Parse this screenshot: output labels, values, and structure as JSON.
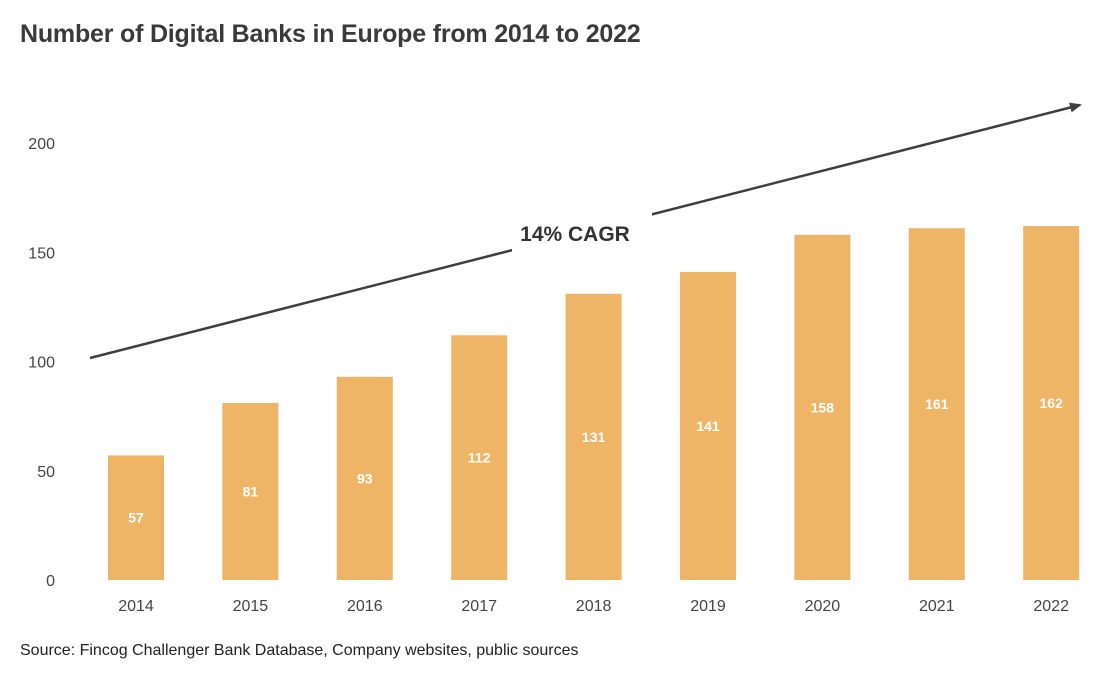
{
  "chart_data": {
    "type": "bar",
    "title": "Number of Digital Banks in Europe from 2014 to 2022",
    "categories": [
      "2014",
      "2015",
      "2016",
      "2017",
      "2018",
      "2019",
      "2020",
      "2021",
      "2022"
    ],
    "values": [
      57,
      81,
      93,
      112,
      131,
      141,
      158,
      161,
      162
    ],
    "data_labels": [
      "57",
      "81",
      "93",
      "112",
      "131",
      "141",
      "158",
      "161",
      "162"
    ],
    "y_ticks": [
      0,
      50,
      100,
      150,
      200
    ],
    "ylim": [
      0,
      200
    ],
    "grid": false,
    "annotation": "14% CAGR",
    "source": "Source: Fincog Challenger Bank Database, Company websites, public sources"
  },
  "colors": {
    "bar": "#efb566",
    "arrow": "#3f3f3f",
    "title": "#3a3a3a"
  }
}
